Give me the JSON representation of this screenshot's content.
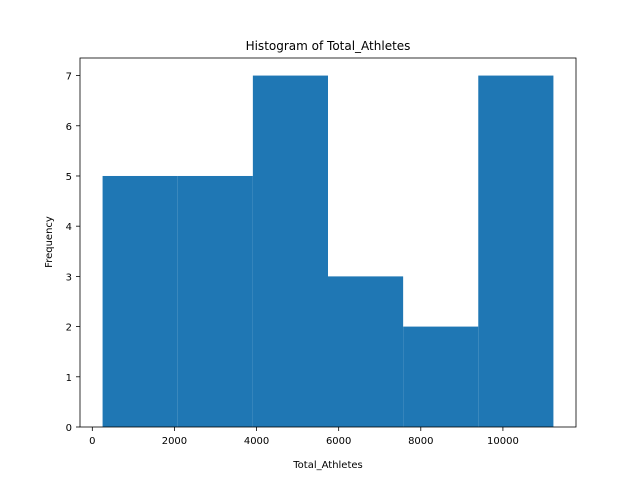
{
  "chart_data": {
    "type": "bar",
    "title": "Histogram of Total_Athletes",
    "xlabel": "Total_Athletes",
    "ylabel": "Frequency",
    "bins": [
      {
        "start": 250,
        "end": 2080,
        "count": 5
      },
      {
        "start": 2080,
        "end": 3910,
        "count": 5
      },
      {
        "start": 3910,
        "end": 5740,
        "count": 7
      },
      {
        "start": 5740,
        "end": 7570,
        "count": 3
      },
      {
        "start": 7570,
        "end": 9400,
        "count": 2
      },
      {
        "start": 9400,
        "end": 11230,
        "count": 7
      }
    ],
    "xlim": [
      -300,
      11780
    ],
    "ylim": [
      0,
      7.35
    ],
    "xticks": [
      0,
      2000,
      4000,
      6000,
      8000,
      10000
    ],
    "yticks": [
      0,
      1,
      2,
      3,
      4,
      5,
      6,
      7
    ],
    "bar_color": "#1f77b4",
    "grid": false,
    "legend": "none"
  }
}
